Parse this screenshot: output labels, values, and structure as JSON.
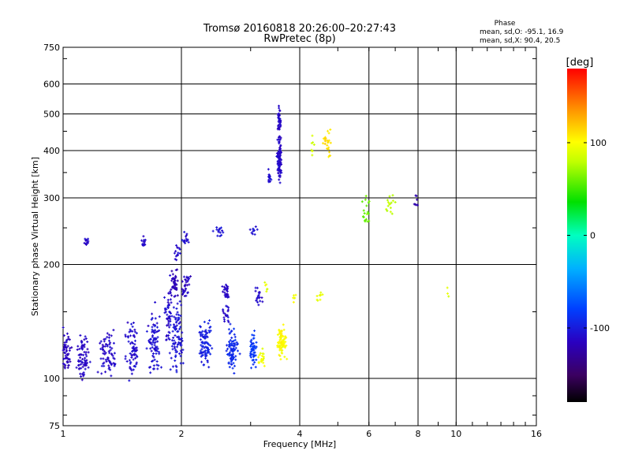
{
  "chart_data": {
    "type": "scatter",
    "title": "Tromsø 20160818 20:26:00–20:27:43",
    "subtitle": "RwPretec (8p)",
    "xlabel": "Frequency [MHz]",
    "ylabel": "Stationary phase Virtual Height [km]",
    "x_scale": "log2",
    "y_scale": "log",
    "xlim": [
      1,
      16
    ],
    "ylim": [
      75,
      750
    ],
    "x_ticks": [
      1,
      2,
      4,
      6,
      8,
      10,
      16
    ],
    "y_ticks": [
      75,
      100,
      200,
      300,
      400,
      500,
      600,
      750
    ],
    "grid_x": [
      1,
      2,
      4,
      6,
      8,
      10,
      16
    ],
    "grid_y": [
      100,
      200,
      300,
      400,
      500,
      600,
      750
    ],
    "grid": true,
    "phase_stats": {
      "heading": "Phase",
      "line_o": "mean, sd,O: -95.1, 16.9",
      "line_x": "mean, sd,X:  90.4, 20.5"
    },
    "colorbar": {
      "label": "[deg]",
      "ticks": [
        -100,
        0,
        100
      ],
      "range": [
        -180,
        180
      ],
      "colormap": "rainbow (black-purple-blue-cyan-green-yellow-orange-red)"
    },
    "series": [
      {
        "points": [
          {
            "x": 1.02,
            "y": 118,
            "phase": -115,
            "spread": 0.06,
            "yspread": 0.08,
            "n": 60
          },
          {
            "x": 1.12,
            "y": 113,
            "phase": -112,
            "spread": 0.08,
            "yspread": 0.08,
            "n": 70
          },
          {
            "x": 1.3,
            "y": 115,
            "phase": -110,
            "spread": 0.09,
            "yspread": 0.08,
            "n": 70
          },
          {
            "x": 1.5,
            "y": 120,
            "phase": -108,
            "spread": 0.08,
            "yspread": 0.1,
            "n": 70
          },
          {
            "x": 1.7,
            "y": 125,
            "phase": -106,
            "spread": 0.07,
            "yspread": 0.12,
            "n": 80
          },
          {
            "x": 1.95,
            "y": 128,
            "phase": -104,
            "spread": 0.08,
            "yspread": 0.13,
            "n": 90
          },
          {
            "x": 2.3,
            "y": 125,
            "phase": -98,
            "spread": 0.08,
            "yspread": 0.1,
            "n": 90
          },
          {
            "x": 2.7,
            "y": 120,
            "phase": -92,
            "spread": 0.07,
            "yspread": 0.08,
            "n": 80
          },
          {
            "x": 3.05,
            "y": 118,
            "phase": -85,
            "spread": 0.05,
            "yspread": 0.07,
            "n": 50
          },
          {
            "x": 3.6,
            "y": 125,
            "phase": 100,
            "spread": 0.05,
            "yspread": 0.06,
            "n": 80
          },
          {
            "x": 3.2,
            "y": 113,
            "phase": 95,
            "spread": 0.05,
            "yspread": 0.04,
            "n": 20
          },
          {
            "x": 1.85,
            "y": 148,
            "phase": -110,
            "spread": 0.04,
            "yspread": 0.12,
            "n": 50
          },
          {
            "x": 1.92,
            "y": 180,
            "phase": -118,
            "spread": 0.04,
            "yspread": 0.06,
            "n": 45
          },
          {
            "x": 2.05,
            "y": 175,
            "phase": -114,
            "spread": 0.05,
            "yspread": 0.05,
            "n": 30
          },
          {
            "x": 2.6,
            "y": 170,
            "phase": -112,
            "spread": 0.04,
            "yspread": 0.03,
            "n": 25
          },
          {
            "x": 2.6,
            "y": 150,
            "phase": -110,
            "spread": 0.05,
            "yspread": 0.05,
            "n": 20
          },
          {
            "x": 3.15,
            "y": 165,
            "phase": -110,
            "spread": 0.05,
            "yspread": 0.04,
            "n": 20
          },
          {
            "x": 1.15,
            "y": 230,
            "phase": -110,
            "spread": 0.04,
            "yspread": 0.015,
            "n": 12
          },
          {
            "x": 1.6,
            "y": 228,
            "phase": -110,
            "spread": 0.03,
            "yspread": 0.02,
            "n": 12
          },
          {
            "x": 2.05,
            "y": 233,
            "phase": -108,
            "spread": 0.04,
            "yspread": 0.03,
            "n": 15
          },
          {
            "x": 2.5,
            "y": 245,
            "phase": -105,
            "spread": 0.06,
            "yspread": 0.02,
            "n": 15
          },
          {
            "x": 3.05,
            "y": 250,
            "phase": -105,
            "spread": 0.05,
            "yspread": 0.03,
            "n": 10
          },
          {
            "x": 1.95,
            "y": 215,
            "phase": -110,
            "spread": 0.04,
            "yspread": 0.04,
            "n": 15
          },
          {
            "x": 3.55,
            "y": 380,
            "phase": -110,
            "spread": 0.025,
            "yspread": 0.08,
            "n": 90
          },
          {
            "x": 3.55,
            "y": 480,
            "phase": -112,
            "spread": 0.02,
            "yspread": 0.07,
            "n": 40
          },
          {
            "x": 3.35,
            "y": 340,
            "phase": -108,
            "spread": 0.02,
            "yspread": 0.03,
            "n": 15
          },
          {
            "x": 4.7,
            "y": 420,
            "phase": 110,
            "spread": 0.05,
            "yspread": 0.06,
            "n": 25
          },
          {
            "x": 4.3,
            "y": 400,
            "phase": 85,
            "spread": 0.03,
            "yspread": 0.05,
            "n": 8
          },
          {
            "x": 4.5,
            "y": 165,
            "phase": 95,
            "spread": 0.04,
            "yspread": 0.02,
            "n": 10
          },
          {
            "x": 3.9,
            "y": 165,
            "phase": 100,
            "spread": 0.03,
            "yspread": 0.02,
            "n": 6
          },
          {
            "x": 3.3,
            "y": 175,
            "phase": 90,
            "spread": 0.03,
            "yspread": 0.02,
            "n": 6
          },
          {
            "x": 5.9,
            "y": 280,
            "phase": 60,
            "spread": 0.05,
            "yspread": 0.06,
            "n": 20
          },
          {
            "x": 6.8,
            "y": 290,
            "phase": 80,
            "spread": 0.05,
            "yspread": 0.05,
            "n": 15
          },
          {
            "x": 7.9,
            "y": 295,
            "phase": -120,
            "spread": 0.03,
            "yspread": 0.04,
            "n": 8
          },
          {
            "x": 9.5,
            "y": 170,
            "phase": 90,
            "spread": 0.02,
            "yspread": 0.03,
            "n": 3
          }
        ]
      }
    ]
  }
}
